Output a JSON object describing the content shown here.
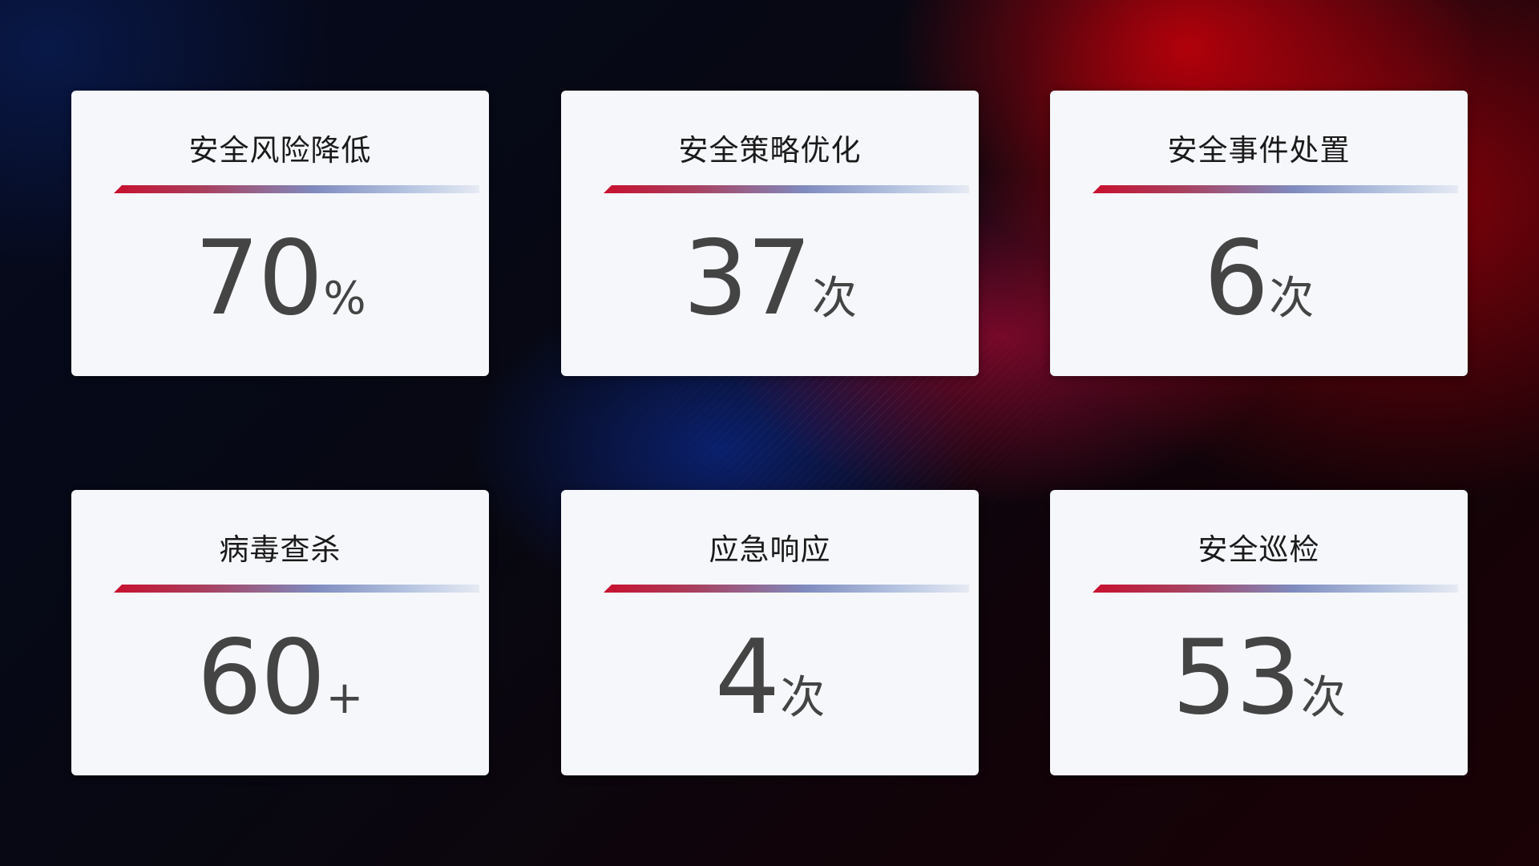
{
  "cards": [
    {
      "title": "安全风险降低",
      "value": "70",
      "suffix": "%"
    },
    {
      "title": "安全策略优化",
      "value": "37",
      "suffix": "次"
    },
    {
      "title": "安全事件处置",
      "value": "6",
      "suffix": "次"
    },
    {
      "title": "病毒查杀",
      "value": "60",
      "suffix": "+"
    },
    {
      "title": "应急响应",
      "value": "4",
      "suffix": "次"
    },
    {
      "title": "安全巡检",
      "value": "53",
      "suffix": "次"
    }
  ],
  "colors": {
    "accent_red": "#c8102e",
    "accent_blue": "#7f8bbf",
    "card_bg": "#f5f7fb",
    "value_text": "#444444"
  }
}
